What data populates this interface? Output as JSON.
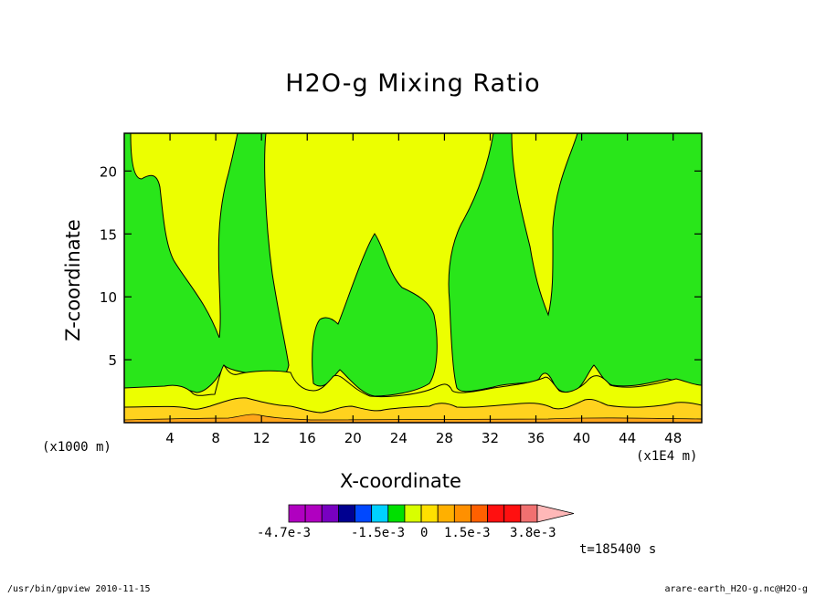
{
  "chart_data": {
    "type": "contour",
    "title": "H2O-g Mixing Ratio",
    "xlabel": "X-coordinate",
    "ylabel": "Z-coordinate",
    "x_unit_left": "(x1000 m)",
    "x_unit_right": "(x1E4 m)",
    "xlim": [
      0,
      50.5
    ],
    "ylim": [
      0,
      23
    ],
    "xticks": [
      4,
      8,
      12,
      16,
      20,
      24,
      28,
      32,
      36,
      40,
      44,
      48
    ],
    "yticks": [
      5,
      10,
      15,
      20
    ],
    "time_label": "t=185400 s",
    "colorbar": {
      "colors": [
        "#b000c0",
        "#b000c0",
        "#7800c0",
        "#000090",
        "#0048ff",
        "#00d0ff",
        "#00e000",
        "#d8ff00",
        "#ffe000",
        "#ffb000",
        "#ff9000",
        "#ff6000",
        "#ff1010",
        "#ff1010",
        "#f07070",
        "#ffb8b8"
      ],
      "labels": [
        "-4.7e-3",
        "-1.5e-3",
        "0",
        "1.5e-3",
        "3.8e-3"
      ]
    },
    "regions": {
      "green": "#29e61a",
      "yellow": "#ecff00",
      "light_orange": "#ffd21e",
      "orange": "#ffa51a"
    }
  },
  "footer": {
    "left": "/usr/bin/gpview   2010-11-15",
    "right": "arare-earth_H2O-g.nc@H2O-g"
  }
}
